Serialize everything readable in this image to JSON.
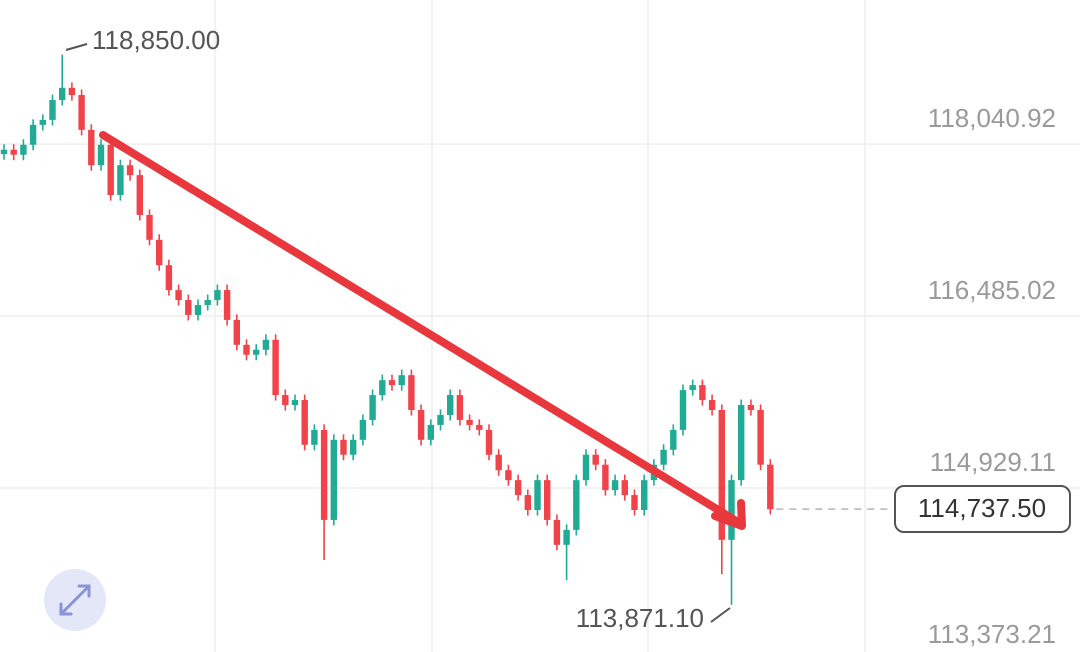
{
  "chart_data": {
    "type": "candlestick",
    "up_color": "#22ab94",
    "down_color": "#f0434a",
    "ylim": [
      113445,
      119345
    ],
    "yticks": [
      {
        "value": 118040.92,
        "label": "118,040.92"
      },
      {
        "value": 116485.02,
        "label": "116,485.02"
      },
      {
        "value": 114929.11,
        "label": "114,929.11"
      },
      {
        "value": 113373.21,
        "label": "113,373.21"
      }
    ],
    "grid": true,
    "high_label": "118,850.00",
    "low_label": "113,871.10",
    "last_price_label": "114,737.50",
    "open": [
      117950,
      117990,
      117945,
      118035,
      118215,
      118260,
      118440,
      118550,
      118485,
      118170,
      117850,
      118035,
      117580,
      117850,
      117760,
      117400,
      117175,
      116945,
      116720,
      116630,
      116495,
      116585,
      116630,
      116720,
      116450,
      116225,
      116135,
      116180,
      116270,
      115770,
      115680,
      115725,
      115320,
      115455,
      114640,
      115365,
      115230,
      115365,
      115545,
      115770,
      115905,
      115860,
      115950,
      115635,
      115365,
      115500,
      115590,
      115770,
      115545,
      115500,
      115455,
      115230,
      115090,
      115000,
      114865,
      114730,
      115000,
      114640,
      114415,
      114550,
      115000,
      115230,
      115140,
      114910,
      115000,
      114865,
      114730,
      115000,
      115140,
      115275,
      115455,
      115815,
      115860,
      115725,
      115635,
      114460,
      115000,
      115680,
      115635,
      115140
    ],
    "high": [
      118040,
      118040,
      118085,
      118265,
      118310,
      118490,
      118850,
      118600,
      118535,
      118220,
      118085,
      118085,
      117900,
      117900,
      117810,
      117450,
      117225,
      116995,
      116770,
      116680,
      116635,
      116680,
      116770,
      116770,
      116500,
      116275,
      116230,
      116320,
      116320,
      115820,
      115775,
      115775,
      115505,
      115505,
      115415,
      115415,
      115415,
      115595,
      115820,
      115955,
      115955,
      116000,
      116000,
      115685,
      115550,
      115640,
      115820,
      115820,
      115595,
      115550,
      115505,
      115280,
      115140,
      115050,
      114915,
      115050,
      115050,
      114690,
      114600,
      115050,
      115280,
      115280,
      115190,
      115050,
      115050,
      114915,
      115050,
      115190,
      115325,
      115505,
      115865,
      115910,
      115910,
      115775,
      115685,
      115050,
      115730,
      115730,
      115685,
      115190
    ],
    "low": [
      117900,
      117895,
      117895,
      117985,
      118165,
      118210,
      118390,
      118435,
      118120,
      117800,
      117800,
      117530,
      117530,
      117710,
      117350,
      117125,
      116895,
      116670,
      116580,
      116445,
      116445,
      116535,
      116580,
      116400,
      116175,
      116085,
      116085,
      116130,
      115720,
      115630,
      115630,
      115270,
      115270,
      114277,
      114590,
      115180,
      115180,
      115315,
      115495,
      115720,
      115810,
      115810,
      115585,
      115315,
      115315,
      115450,
      115540,
      115495,
      115450,
      115405,
      115180,
      115040,
      114950,
      114815,
      114680,
      114680,
      114590,
      114365,
      114095,
      114500,
      114950,
      115090,
      114860,
      114860,
      114815,
      114680,
      114680,
      114950,
      115090,
      115225,
      115405,
      115765,
      115675,
      115585,
      114150,
      113871.1,
      114950,
      115585,
      115090,
      114690
    ],
    "close": [
      117990,
      117945,
      118035,
      118215,
      118260,
      118440,
      118550,
      118485,
      118170,
      117850,
      118035,
      117580,
      117850,
      117760,
      117400,
      117175,
      116945,
      116720,
      116630,
      116495,
      116585,
      116630,
      116720,
      116450,
      116225,
      116135,
      116180,
      116270,
      115770,
      115680,
      115725,
      115320,
      115455,
      114640,
      115365,
      115230,
      115365,
      115545,
      115770,
      115905,
      115860,
      115950,
      115635,
      115365,
      115500,
      115590,
      115770,
      115545,
      115500,
      115455,
      115230,
      115090,
      115000,
      114865,
      114730,
      115000,
      114640,
      114415,
      114550,
      115000,
      115230,
      115140,
      114910,
      115000,
      114865,
      114730,
      115000,
      115140,
      115275,
      115455,
      115815,
      115860,
      115725,
      115635,
      114460,
      115000,
      115680,
      115635,
      115140,
      114737.5
    ]
  }
}
